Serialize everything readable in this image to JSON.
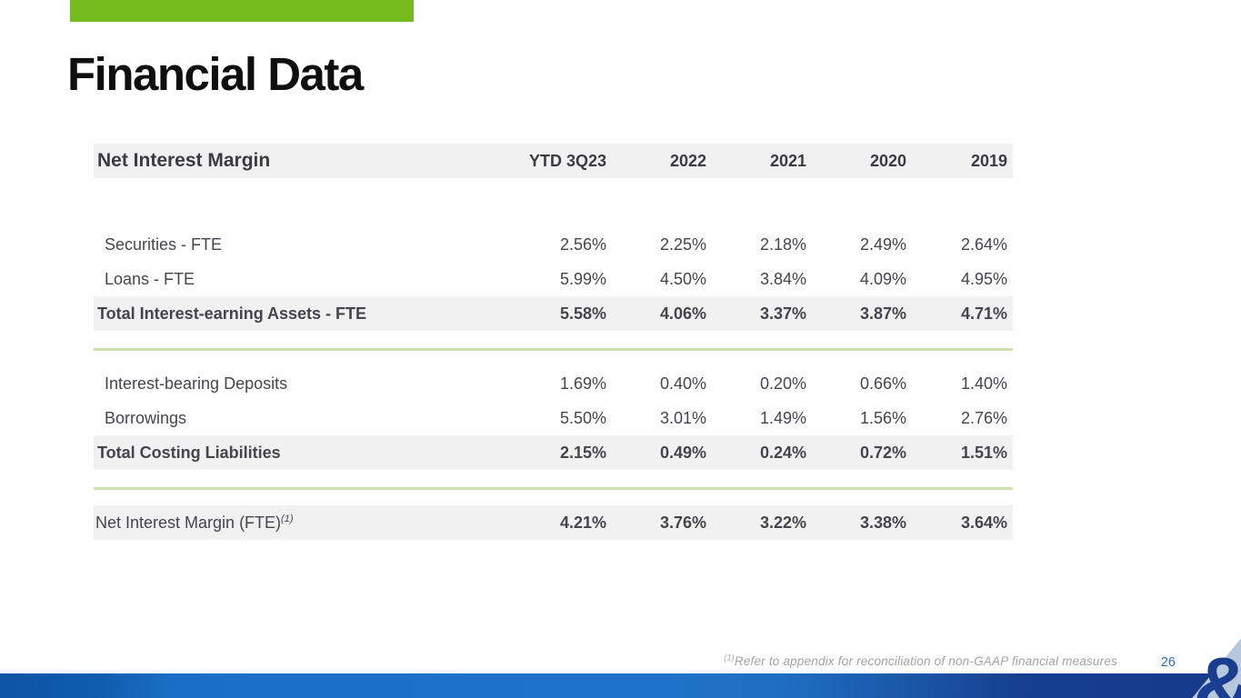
{
  "slide": {
    "title": "Financial Data",
    "page_number": "26",
    "footnote": {
      "marker": "(1)",
      "text": "Refer to appendix for reconciliation of non-GAAP financial measures"
    },
    "logo_glyph": "&"
  },
  "table": {
    "title": "Net Interest Margin",
    "columns": [
      "YTD 3Q23",
      "2022",
      "2021",
      "2020",
      "2019"
    ],
    "rows": [
      {
        "type": "item",
        "label": "Securities - FTE",
        "values": [
          "2.56%",
          "2.25%",
          "2.18%",
          "2.49%",
          "2.64%"
        ]
      },
      {
        "type": "item",
        "label": "Loans - FTE",
        "values": [
          "5.99%",
          "4.50%",
          "3.84%",
          "4.09%",
          "4.95%"
        ]
      },
      {
        "type": "total",
        "label": "Total Interest-earning Assets - FTE",
        "values": [
          "5.58%",
          "4.06%",
          "3.37%",
          "3.87%",
          "4.71%"
        ]
      },
      {
        "type": "divider"
      },
      {
        "type": "item",
        "label": "Interest-bearing Deposits",
        "values": [
          "1.69%",
          "0.40%",
          "0.20%",
          "0.66%",
          "1.40%"
        ]
      },
      {
        "type": "item",
        "label": "Borrowings",
        "values": [
          "5.50%",
          "3.01%",
          "1.49%",
          "1.56%",
          "2.76%"
        ]
      },
      {
        "type": "total",
        "label": "Total Costing Liabilities",
        "values": [
          "2.15%",
          "0.49%",
          "0.24%",
          "0.72%",
          "1.51%"
        ]
      },
      {
        "type": "divider"
      },
      {
        "type": "summary",
        "label": "Net Interest Margin (FTE)",
        "label_superscript": "(1)",
        "values": [
          "4.21%",
          "3.76%",
          "3.22%",
          "3.38%",
          "3.64%"
        ]
      }
    ]
  },
  "colors": {
    "accent_green": "#77bc1f",
    "divider_green": "#cfe3ae",
    "row_shade": "#f1f1f2",
    "body_text": "#45464d",
    "page_number_blue": "#2a6fb7",
    "bottom_bar_blue": "#1a6fc4",
    "logo_navy": "#1b3d8f",
    "logo_swoosh": "#b7c8dc"
  }
}
